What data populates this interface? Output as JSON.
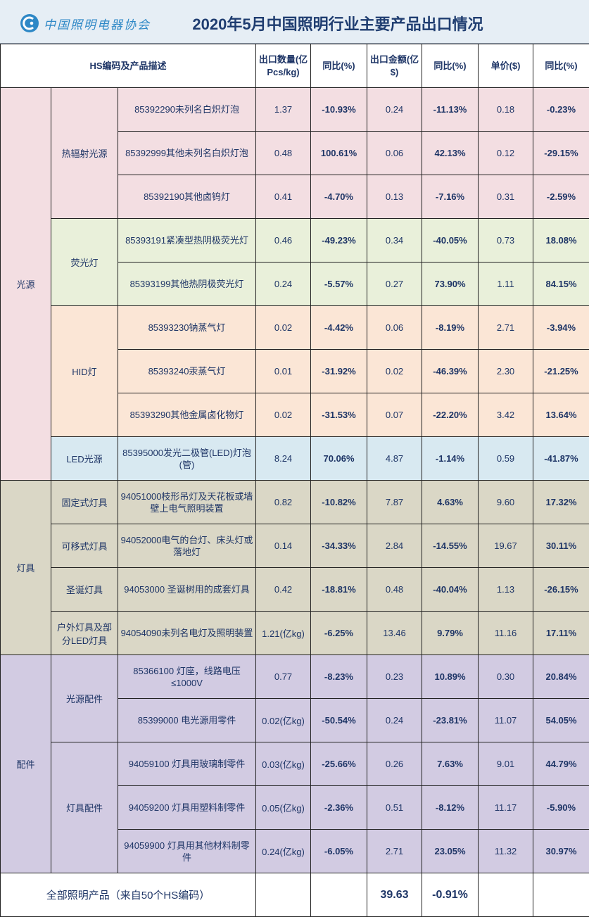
{
  "header": {
    "logo_text": "中国照明电器协会",
    "logo_mark": "CALI",
    "title": "2020年5月中国照明行业主要产品出口情况"
  },
  "columns": {
    "desc": "HS编码及产品描述",
    "qty": "出口数量(亿Pcs/kg)",
    "qty_yoy": "同比(%)",
    "amt": "出口金额(亿$)",
    "amt_yoy": "同比(%)",
    "price": "单价($)",
    "price_yoy": "同比(%)"
  },
  "groups": {
    "light_source": "光源",
    "luminaire": "灯具",
    "accessory": "配件"
  },
  "subgroups": {
    "thermal": "热辐射光源",
    "fluorescent": "荧光灯",
    "hid": "HID灯",
    "led": "LED光源",
    "fixed": "固定式灯具",
    "portable": "可移式灯具",
    "christmas": "圣诞灯具",
    "outdoor": "户外灯具及部分LED灯具",
    "src_acc": "光源配件",
    "lum_acc": "灯具配件"
  },
  "rows": [
    {
      "desc": "85392290未列名白炽灯泡",
      "qty": "1.37",
      "qty_yoy": "-10.93%",
      "amt": "0.24",
      "amt_yoy": "-11.13%",
      "price": "0.18",
      "price_yoy": "-0.23%"
    },
    {
      "desc": "85392999其他未列名白炽灯泡",
      "qty": "0.48",
      "qty_yoy": "100.61%",
      "amt": "0.06",
      "amt_yoy": "42.13%",
      "price": "0.12",
      "price_yoy": "-29.15%"
    },
    {
      "desc": "85392190其他卤钨灯",
      "qty": "0.41",
      "qty_yoy": "-4.70%",
      "amt": "0.13",
      "amt_yoy": "-7.16%",
      "price": "0.31",
      "price_yoy": "-2.59%"
    },
    {
      "desc": "85393191紧凑型热阴极荧光灯",
      "qty": "0.46",
      "qty_yoy": "-49.23%",
      "amt": "0.34",
      "amt_yoy": "-40.05%",
      "price": "0.73",
      "price_yoy": "18.08%"
    },
    {
      "desc": "85393199其他热阴极荧光灯",
      "qty": "0.24",
      "qty_yoy": "-5.57%",
      "amt": "0.27",
      "amt_yoy": "73.90%",
      "price": "1.11",
      "price_yoy": "84.15%"
    },
    {
      "desc": "85393230钠蒸气灯",
      "qty": "0.02",
      "qty_yoy": "-4.42%",
      "amt": "0.06",
      "amt_yoy": "-8.19%",
      "price": "2.71",
      "price_yoy": "-3.94%"
    },
    {
      "desc": "85393240汞蒸气灯",
      "qty": "0.01",
      "qty_yoy": "-31.92%",
      "amt": "0.02",
      "amt_yoy": "-46.39%",
      "price": "2.30",
      "price_yoy": "-21.25%"
    },
    {
      "desc": "85393290其他金属卤化物灯",
      "qty": "0.02",
      "qty_yoy": "-31.53%",
      "amt": "0.07",
      "amt_yoy": "-22.20%",
      "price": "3.42",
      "price_yoy": "13.64%"
    },
    {
      "desc": "85395000发光二极管(LED)灯泡(管)",
      "qty": "8.24",
      "qty_yoy": "70.06%",
      "amt": "4.87",
      "amt_yoy": "-1.14%",
      "price": "0.59",
      "price_yoy": "-41.87%"
    },
    {
      "desc": "94051000枝形吊灯及天花板或墙壁上电气照明装置",
      "qty": "0.82",
      "qty_yoy": "-10.82%",
      "amt": "7.87",
      "amt_yoy": "4.63%",
      "price": "9.60",
      "price_yoy": "17.32%"
    },
    {
      "desc": "94052000电气的台灯、床头灯或落地灯",
      "qty": "0.14",
      "qty_yoy": "-34.33%",
      "amt": "2.84",
      "amt_yoy": "-14.55%",
      "price": "19.67",
      "price_yoy": "30.11%"
    },
    {
      "desc": "94053000 圣诞树用的成套灯具",
      "qty": "0.42",
      "qty_yoy": "-18.81%",
      "amt": "0.48",
      "amt_yoy": "-40.04%",
      "price": "1.13",
      "price_yoy": "-26.15%"
    },
    {
      "desc": "94054090未列名电灯及照明装置",
      "qty": "1.21(亿kg)",
      "qty_yoy": "-6.25%",
      "amt": "13.46",
      "amt_yoy": "9.79%",
      "price": "11.16",
      "price_yoy": "17.11%"
    },
    {
      "desc": "85366100 灯座，线路电压≤1000V",
      "qty": "0.77",
      "qty_yoy": "-8.23%",
      "amt": "0.23",
      "amt_yoy": "10.89%",
      "price": "0.30",
      "price_yoy": "20.84%"
    },
    {
      "desc": "85399000 电光源用零件",
      "qty": "0.02(亿kg)",
      "qty_yoy": "-50.54%",
      "amt": "0.24",
      "amt_yoy": "-23.81%",
      "price": "11.07",
      "price_yoy": "54.05%"
    },
    {
      "desc": "94059100 灯具用玻璃制零件",
      "qty": "0.03(亿kg)",
      "qty_yoy": "-25.66%",
      "amt": "0.26",
      "amt_yoy": "7.63%",
      "price": "9.01",
      "price_yoy": "44.79%"
    },
    {
      "desc": "94059200 灯具用塑料制零件",
      "qty": "0.05(亿kg)",
      "qty_yoy": "-2.36%",
      "amt": "0.51",
      "amt_yoy": "-8.12%",
      "price": "11.17",
      "price_yoy": "-5.90%"
    },
    {
      "desc": "94059900 灯具用其他材料制零件",
      "qty": "0.24(亿kg)",
      "qty_yoy": "-6.05%",
      "amt": "2.71",
      "amt_yoy": "23.05%",
      "price": "11.32",
      "price_yoy": "30.97%"
    }
  ],
  "total": {
    "label": "全部照明产品（来自50个HS编码）",
    "amt": "39.63",
    "amt_yoy": "-0.91%"
  },
  "colors": {
    "positive": "#e01010",
    "negative": "#1aa02a",
    "text": "#1e3566",
    "title": "#1f3d70",
    "header_bg": "#e6eef5",
    "pink": "#f3dee2",
    "green": "#e9f0da",
    "orange": "#fbe6d6",
    "blue": "#d8e9f1",
    "tan": "#dad7c6",
    "purple": "#d2cbe2"
  }
}
